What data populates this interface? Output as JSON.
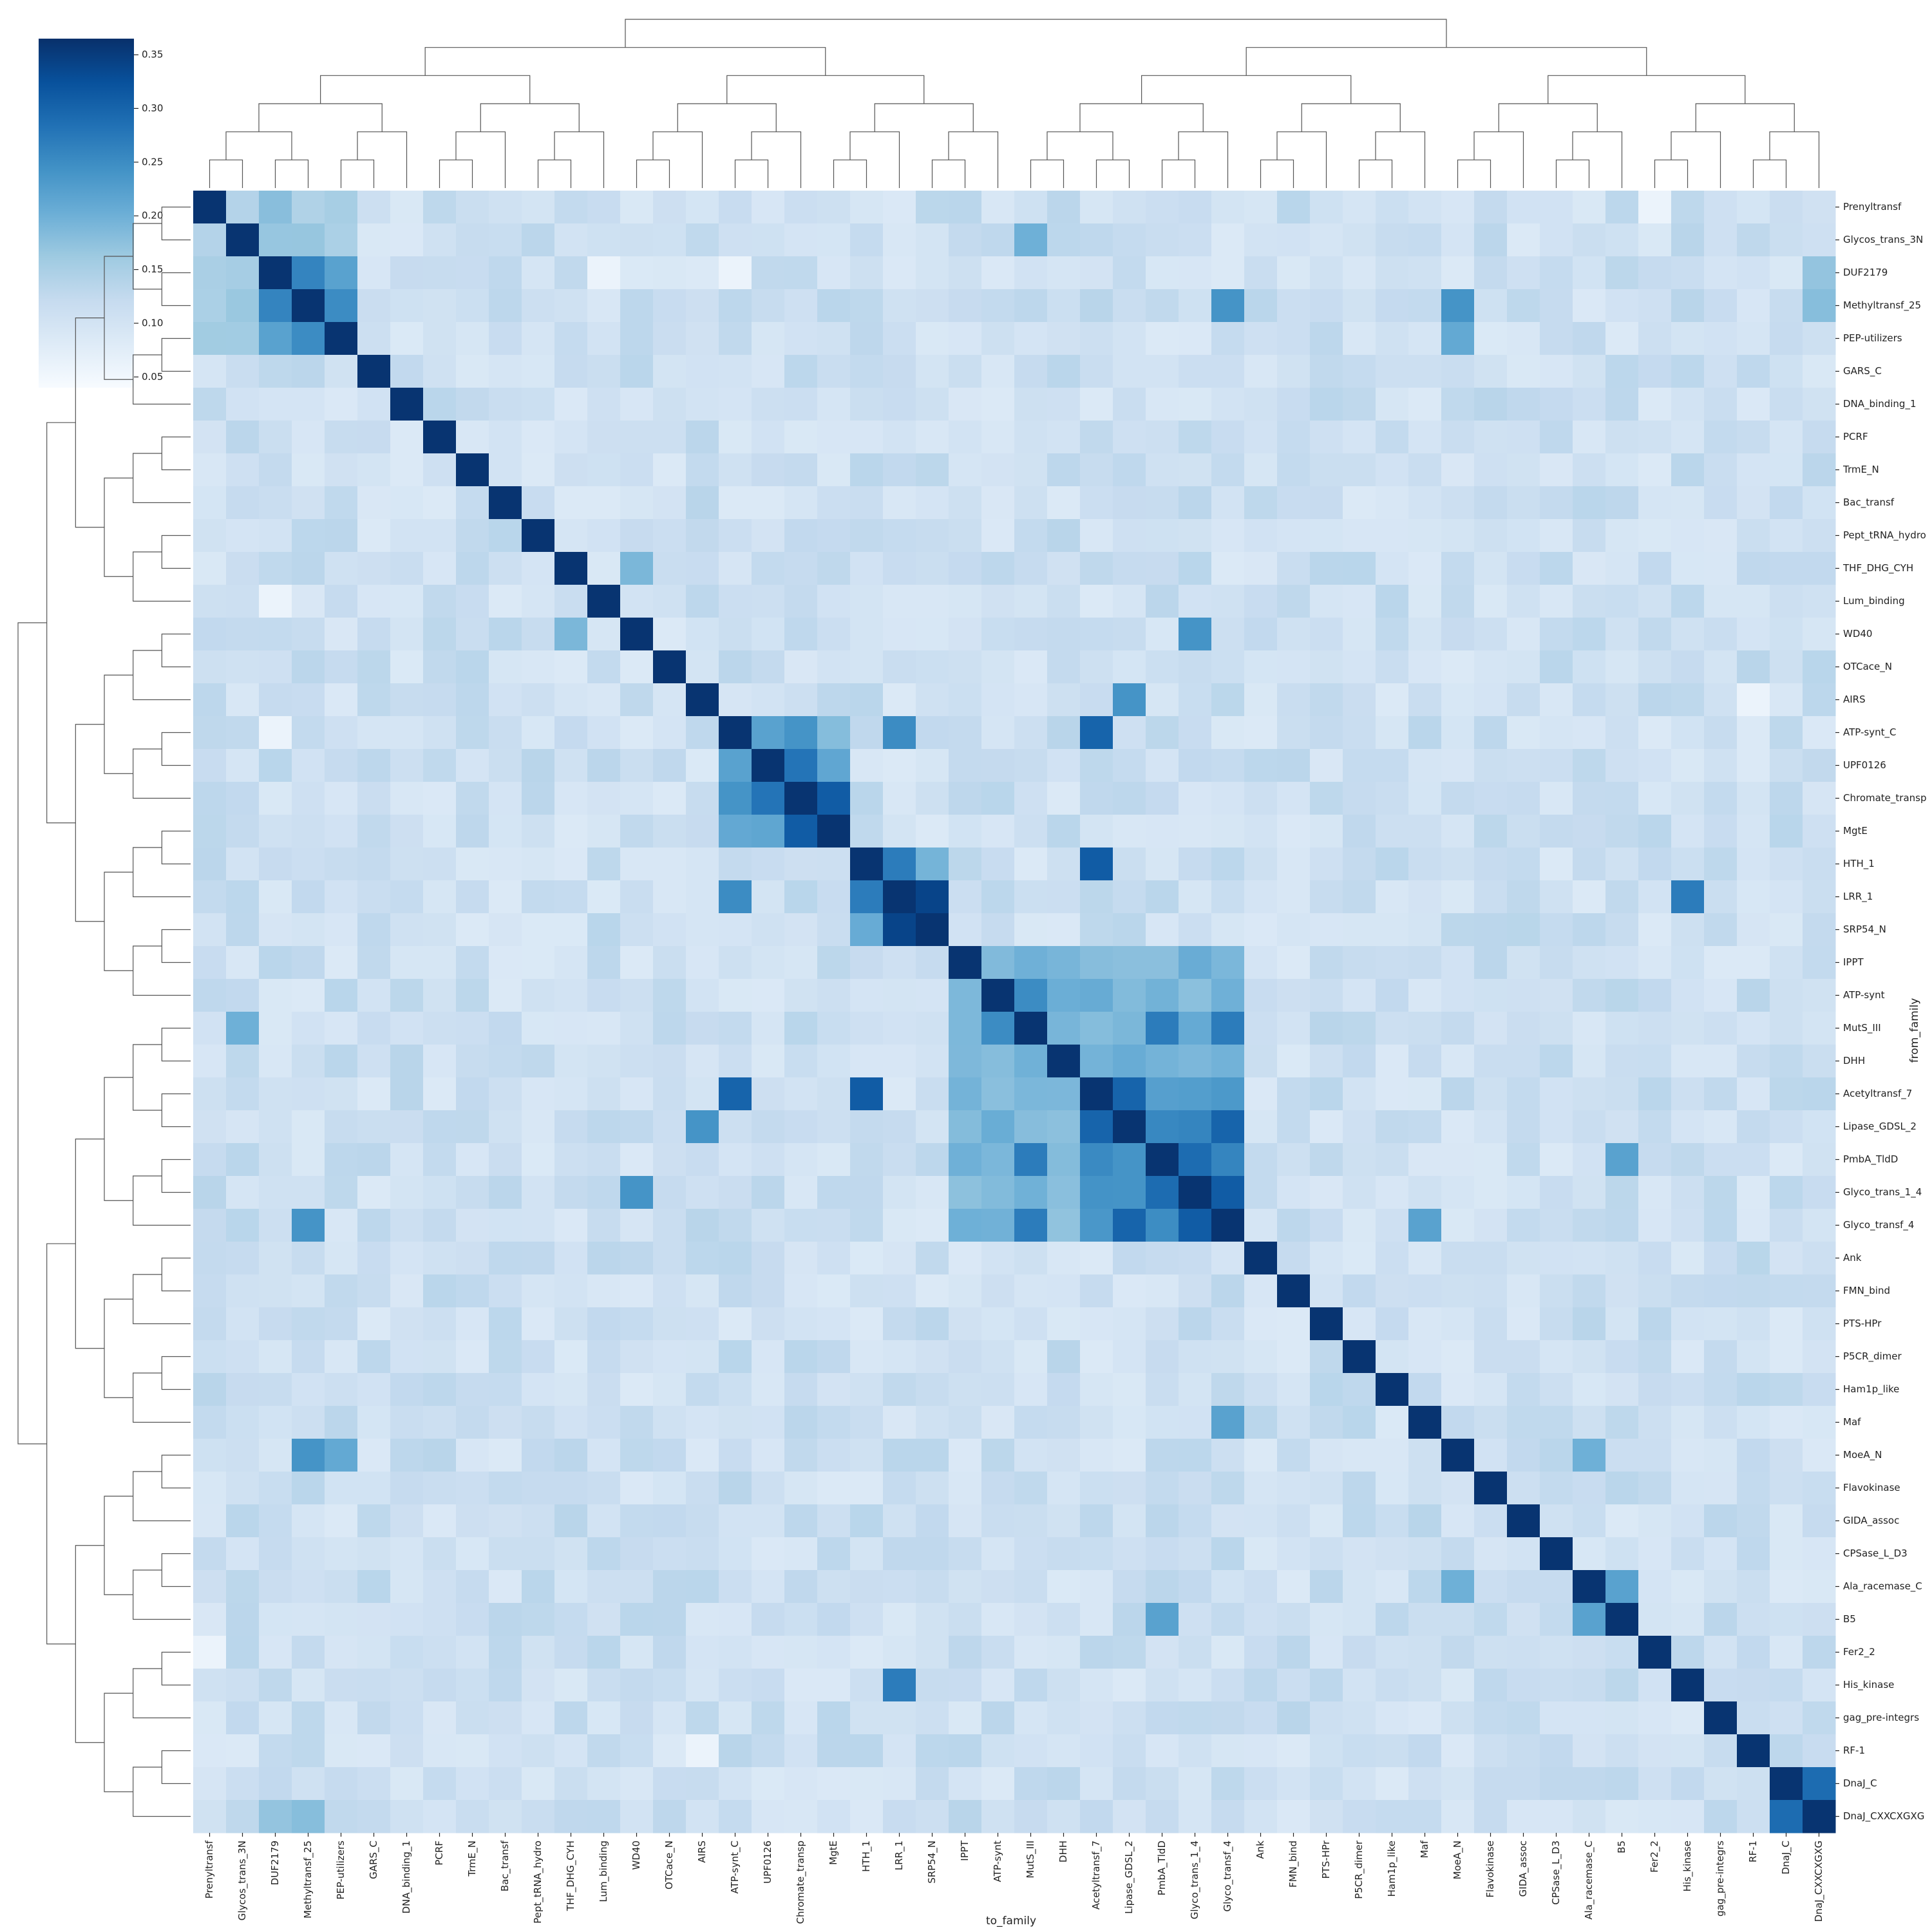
{
  "chart_data": {
    "type": "heatmap",
    "title": "",
    "xlabel": "to_family",
    "ylabel": "from_family",
    "labels": [
      "Prenyltransf",
      "Glycos_trans_3N",
      "DUF2179",
      "Methyltransf_25",
      "PEP-utilizers",
      "GARS_C",
      "DNA_binding_1",
      "PCRF",
      "TrmE_N",
      "Bac_transf",
      "Pept_tRNA_hydro",
      "THF_DHG_CYH",
      "Lum_binding",
      "WD40",
      "OTCace_N",
      "AIRS",
      "ATP-synt_C",
      "UPF0126",
      "Chromate_transp",
      "MgtE",
      "HTH_1",
      "LRR_1",
      "SRP54_N",
      "IPPT",
      "ATP-synt",
      "MutS_III",
      "DHH",
      "Acetyltransf_7",
      "Lipase_GDSL_2",
      "PmbA_TldD",
      "Glyco_trans_1_4",
      "Glyco_transf_4",
      "Ank",
      "FMN_bind",
      "PTS-HPr",
      "P5CR_dimer",
      "Ham1p_like",
      "Maf",
      "MoeA_N",
      "Flavokinase",
      "GIDA_assoc",
      "CPSase_L_D3",
      "Ala_racemase_C",
      "B5",
      "Fer2_2",
      "His_kinase",
      "gag_pre-integrs",
      "RF-1",
      "DnaJ_C",
      "DnaJ_CXXCXGXG"
    ],
    "colorbar": {
      "colormap": "Blues",
      "vmin": 0.04,
      "vmax": 0.365,
      "ticks": [
        "0.05",
        "0.10",
        "0.15",
        "0.20",
        "0.25",
        "0.30",
        "0.35"
      ]
    },
    "diagonal_value": 0.36,
    "default_value": 0.11,
    "block_values": [
      {
        "range": [
          0,
          4
        ],
        "value": 0.16
      },
      {
        "range": [
          16,
          19
        ],
        "value": 0.2
      },
      {
        "range": [
          20,
          22
        ],
        "value": 0.2
      },
      {
        "range": [
          23,
          31
        ],
        "value": 0.19
      },
      {
        "range": [
          27,
          31
        ],
        "value": 0.24
      },
      {
        "range": [
          48,
          49
        ],
        "value": 0.25
      }
    ],
    "pair_values": [
      {
        "from": "Prenyltransf",
        "to": "Glycos_trans_3N",
        "value": 0.14
      },
      {
        "from": "DUF2179",
        "to": "Methyltransf_25",
        "value": 0.26
      },
      {
        "from": "DUF2179",
        "to": "PEP-utilizers",
        "value": 0.22
      },
      {
        "from": "Methyltransf_25",
        "to": "PEP-utilizers",
        "value": 0.25
      },
      {
        "from": "Methyltransf_25",
        "to": "MoeA_N",
        "value": 0.24
      },
      {
        "from": "Methyltransf_25",
        "to": "Glyco_transf_4",
        "value": 0.24
      },
      {
        "from": "PEP-utilizers",
        "to": "MoeA_N",
        "value": 0.21
      },
      {
        "from": "Glycos_trans_3N",
        "to": "MutS_III",
        "value": 0.2
      },
      {
        "from": "THF_DHG_CYH",
        "to": "WD40",
        "value": 0.19
      },
      {
        "from": "WD40",
        "to": "Glyco_trans_1_4",
        "value": 0.24
      },
      {
        "from": "AIRS",
        "to": "Lipase_GDSL_2",
        "value": 0.24
      },
      {
        "from": "ATP-synt_C",
        "to": "UPF0126",
        "value": 0.22
      },
      {
        "from": "ATP-synt_C",
        "to": "Chromate_transp",
        "value": 0.24
      },
      {
        "from": "ATP-synt_C",
        "to": "LRR_1",
        "value": 0.25
      },
      {
        "from": "ATP-synt_C",
        "to": "Acetyltransf_7",
        "value": 0.3
      },
      {
        "from": "UPF0126",
        "to": "Chromate_transp",
        "value": 0.28
      },
      {
        "from": "Chromate_transp",
        "to": "MgtE",
        "value": 0.31
      },
      {
        "from": "HTH_1",
        "to": "LRR_1",
        "value": 0.27
      },
      {
        "from": "HTH_1",
        "to": "Acetyltransf_7",
        "value": 0.31
      },
      {
        "from": "LRR_1",
        "to": "SRP54_N",
        "value": 0.34
      },
      {
        "from": "LRR_1",
        "to": "His_kinase",
        "value": 0.27
      },
      {
        "from": "ATP-synt",
        "to": "MutS_III",
        "value": 0.25
      },
      {
        "from": "MutS_III",
        "to": "PmbA_TldD",
        "value": 0.27
      },
      {
        "from": "MutS_III",
        "to": "Glyco_transf_4",
        "value": 0.27
      },
      {
        "from": "Acetyltransf_7",
        "to": "Lipase_GDSL_2",
        "value": 0.3
      },
      {
        "from": "Lipase_GDSL_2",
        "to": "Glyco_transf_4",
        "value": 0.3
      },
      {
        "from": "PmbA_TldD",
        "to": "Glyco_trans_1_4",
        "value": 0.29
      },
      {
        "from": "Glyco_trans_1_4",
        "to": "Glyco_transf_4",
        "value": 0.31
      },
      {
        "from": "PmbA_TldD",
        "to": "B5",
        "value": 0.22
      },
      {
        "from": "Maf",
        "to": "Glyco_transf_4",
        "value": 0.22
      },
      {
        "from": "Ala_racemase_C",
        "to": "B5",
        "value": 0.22
      },
      {
        "from": "MoeA_N",
        "to": "Ala_racemase_C",
        "value": 0.2
      },
      {
        "from": "DnaJ_C",
        "to": "DnaJ_CXXCXGXG",
        "value": 0.29
      },
      {
        "from": "DUF2179",
        "to": "DnaJ_CXXCXGXG",
        "value": 0.17
      },
      {
        "from": "Methyltransf_25",
        "to": "DnaJ_CXXCXGXG",
        "value": 0.18
      },
      {
        "from": "Fer2_2",
        "to": "Prenyltransf",
        "value": 0.06
      },
      {
        "from": "RF-1",
        "to": "AIRS",
        "value": 0.06
      },
      {
        "from": "Lum_binding",
        "to": "DUF2179",
        "value": 0.06
      },
      {
        "from": "DUF2179",
        "to": "ATP-synt_C",
        "value": 0.06
      }
    ],
    "legend": "top-left colorbar",
    "grid": false
  }
}
